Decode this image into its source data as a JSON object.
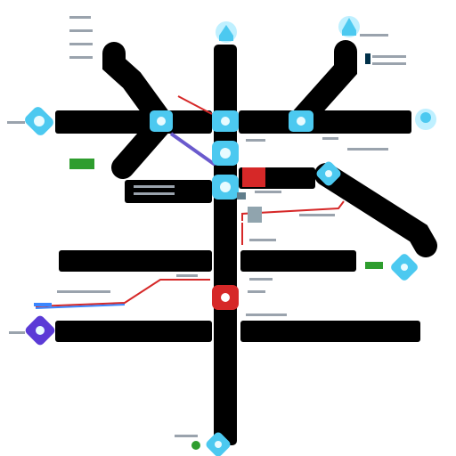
{
  "diagram": {
    "type": "transit-style network diagram",
    "colors": {
      "route": "#000000",
      "background": "#ffffff",
      "node_fill": "#4cc9f0",
      "node_glow": "#bff0ff",
      "node_purple": "#5b3bd6",
      "accent_red": "#d62828",
      "accent_green": "#2e9d2e",
      "accent_blue": "#3a86ff",
      "label_gray": "#7f8a96"
    },
    "nodes": [
      {
        "id": "n-top-center",
        "icon": "house-icon"
      },
      {
        "id": "n-top-right",
        "icon": "house-icon"
      },
      {
        "id": "n-left",
        "icon": "gear-icon"
      },
      {
        "id": "n-mid-1",
        "icon": "droplet-icon"
      },
      {
        "id": "n-mid-2",
        "icon": "droplet-icon"
      },
      {
        "id": "n-mid-3",
        "icon": "droplet-icon"
      },
      {
        "id": "n-right",
        "icon": "person-icon"
      },
      {
        "id": "n-center",
        "icon": "droplet-icon"
      },
      {
        "id": "n-center-2",
        "icon": "droplet-icon"
      },
      {
        "id": "n-red",
        "icon": "alert-icon"
      },
      {
        "id": "n-right-low",
        "icon": "droplet-icon"
      },
      {
        "id": "n-purple",
        "icon": "droplet-icon"
      },
      {
        "id": "n-bottom",
        "icon": "droplet-icon"
      }
    ],
    "labels": [
      "",
      "",
      "",
      "",
      "",
      "",
      "",
      "",
      "",
      "",
      "",
      "",
      ""
    ]
  }
}
